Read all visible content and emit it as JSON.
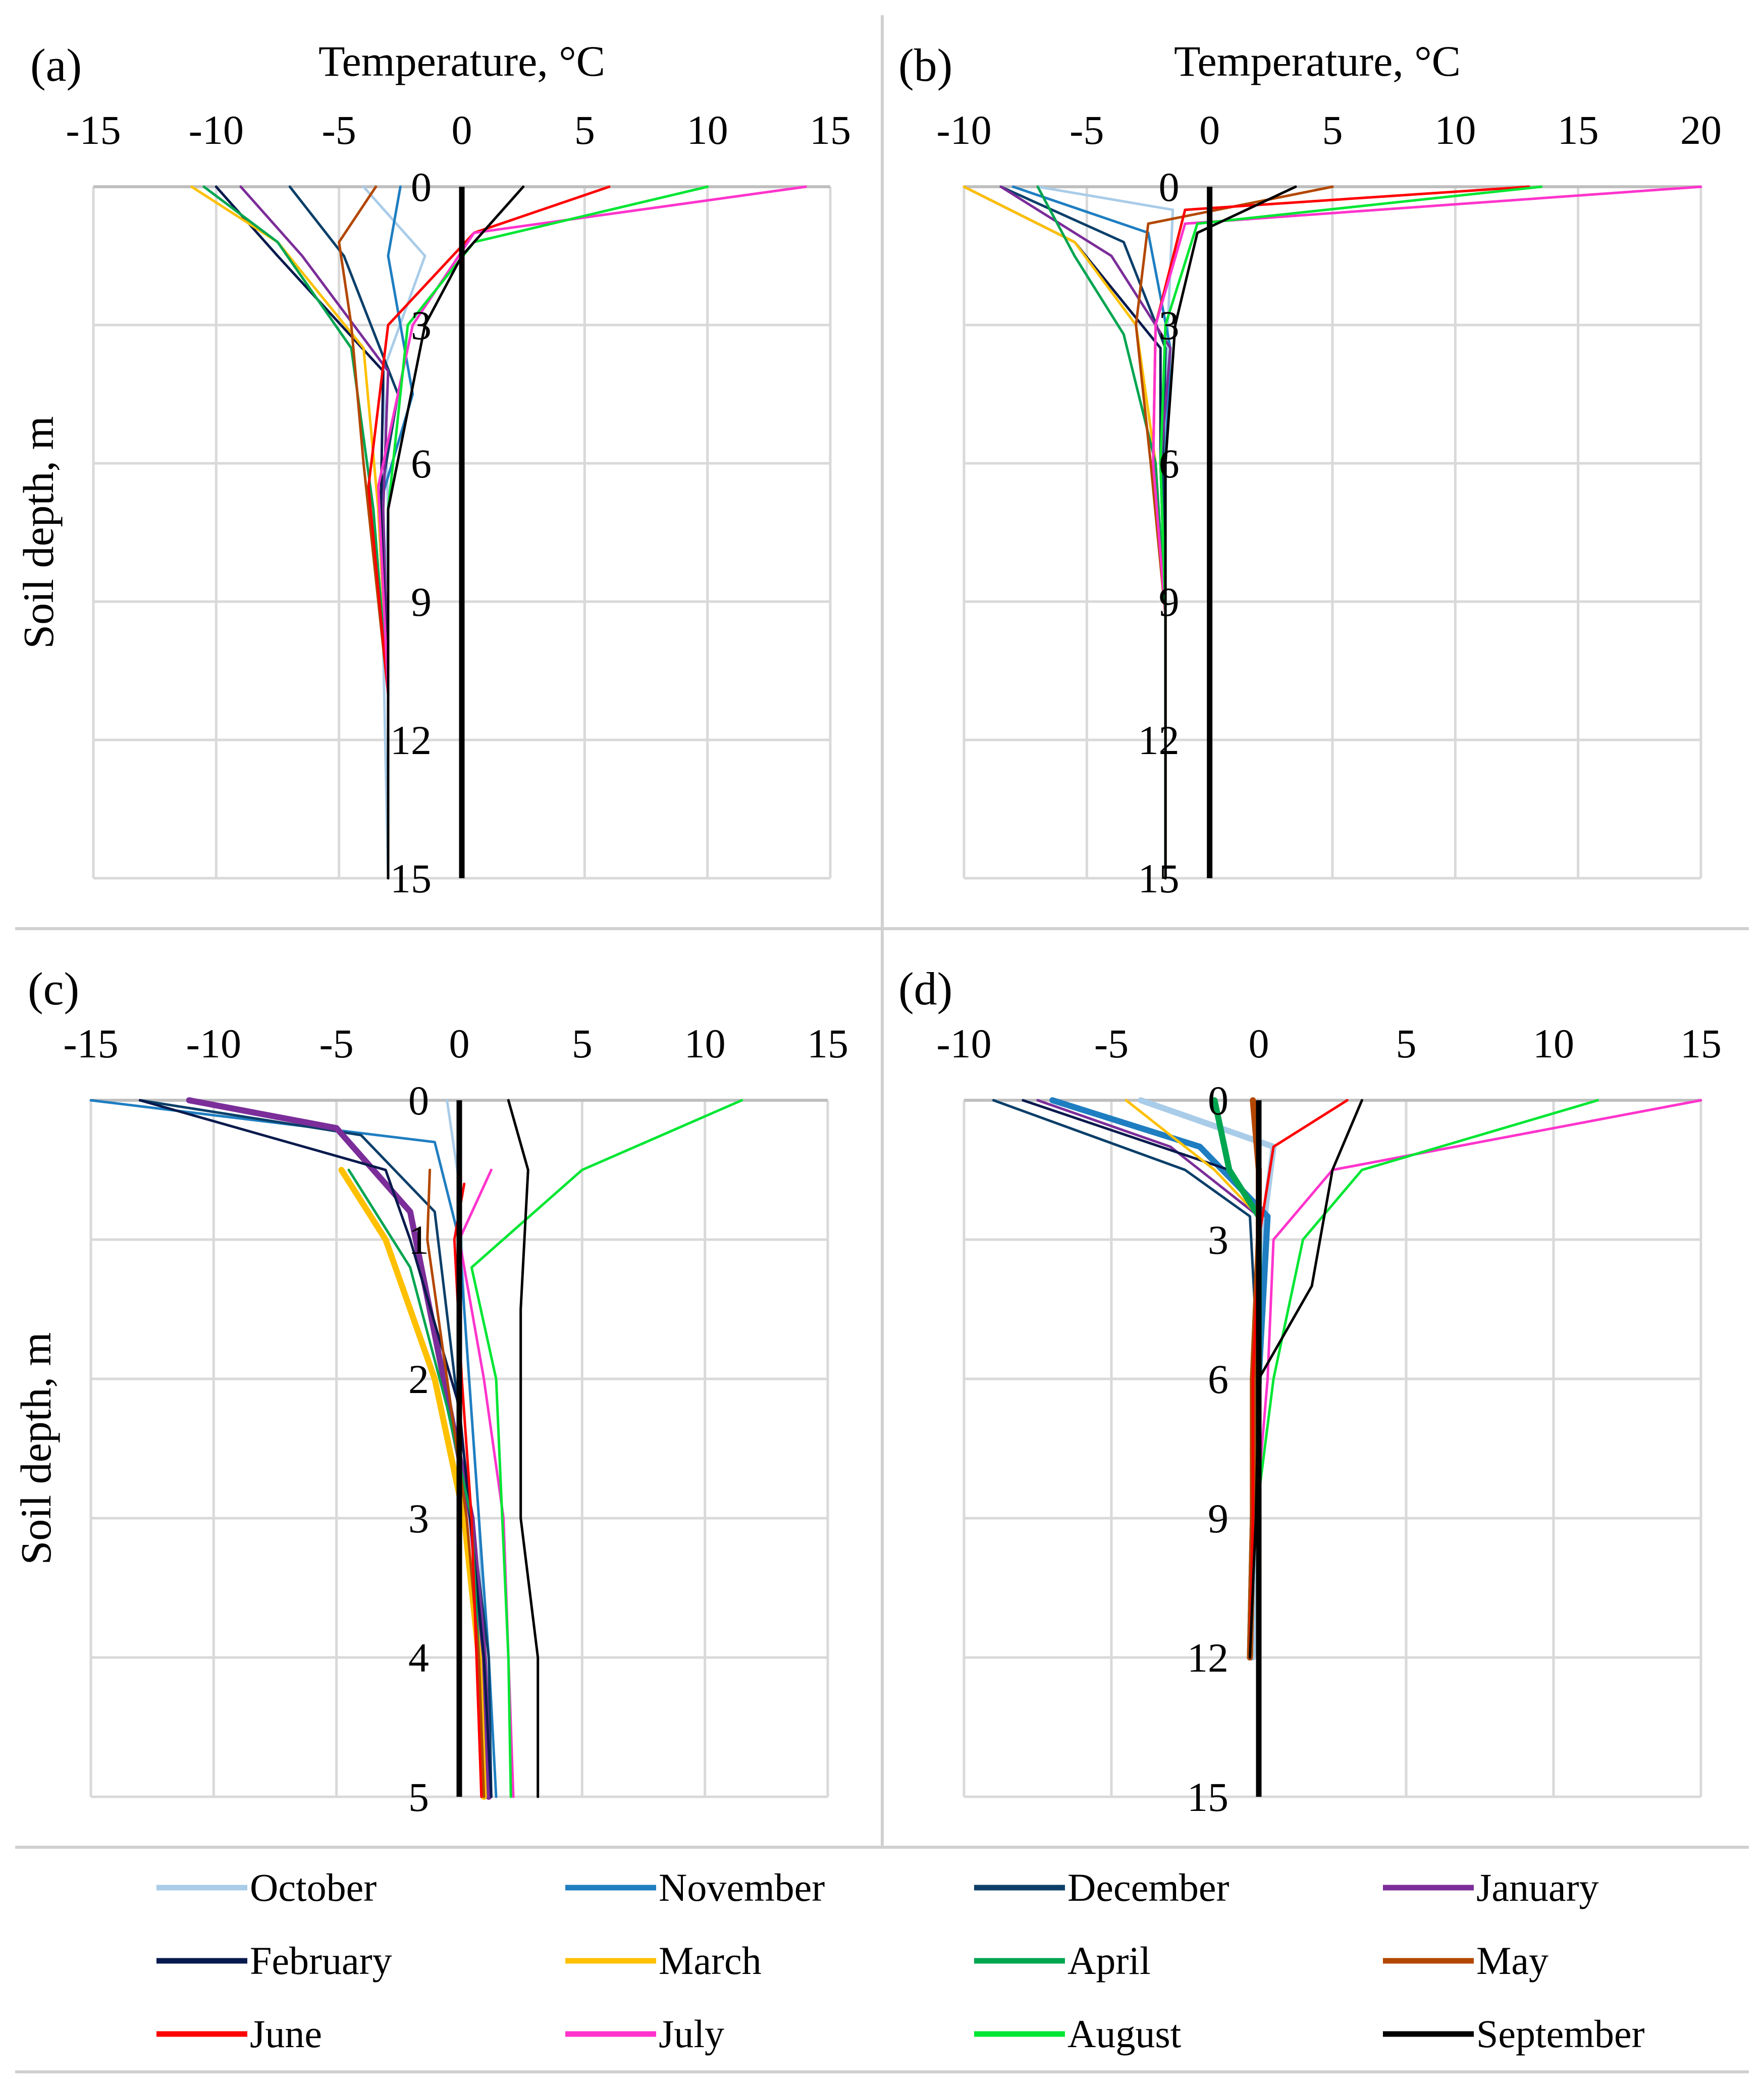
{
  "colors": {
    "October": "#a9cce8",
    "November": "#1f7ec1",
    "December": "#0b3f69",
    "January": "#7b2d99",
    "February": "#081a4d",
    "March": "#ffc000",
    "April": "#00a550",
    "May": "#b34700",
    "June": "#ff0000",
    "July": "#ff33cc",
    "August": "#00e633",
    "September": "#000000",
    "zero_line": "#000000"
  },
  "legend": {
    "items": [
      "October",
      "November",
      "December",
      "January",
      "February",
      "March",
      "April",
      "May",
      "June",
      "July",
      "August",
      "September"
    ]
  },
  "chart_data": [
    {
      "id": "a",
      "type": "line",
      "panel_label": "(a)",
      "xlabel": "Temperature, °C",
      "ylabel": "Soil depth, m",
      "xlim": [
        -15,
        15
      ],
      "ylim": [
        0,
        15
      ],
      "xticks": [
        -15,
        -10,
        -5,
        0,
        5,
        10,
        15
      ],
      "yticks": [
        0,
        3,
        6,
        9,
        12,
        15
      ],
      "zero_line": true,
      "series": [
        {
          "name": "October",
          "x": [
            -4,
            -1.5,
            -3.2,
            -3,
            -3.2,
            -3
          ],
          "y": [
            0,
            1.5,
            4,
            7,
            10,
            15
          ]
        },
        {
          "name": "November",
          "x": [
            -2.5,
            -3,
            -2,
            -3.4,
            -3,
            -3
          ],
          "y": [
            0,
            1.5,
            4.5,
            7,
            11,
            15
          ]
        },
        {
          "name": "December",
          "x": [
            -7,
            -4.8,
            -2.6,
            -3.4,
            -3,
            -3
          ],
          "y": [
            0,
            1.5,
            4.5,
            7,
            11,
            15
          ]
        },
        {
          "name": "January",
          "x": [
            -9,
            -6.5,
            -3,
            -3.2,
            -3,
            -3
          ],
          "y": [
            0,
            1.5,
            4,
            7,
            11,
            15
          ]
        },
        {
          "name": "February",
          "x": [
            -10,
            -7.5,
            -3.2,
            -3.3,
            -3,
            -3
          ],
          "y": [
            0,
            1.5,
            4,
            7,
            11,
            15
          ]
        },
        {
          "name": "March",
          "x": [
            -11,
            -7.5,
            -4,
            -3.4,
            -3,
            -3
          ],
          "y": [
            0,
            1.2,
            3.5,
            7,
            11,
            15
          ]
        },
        {
          "name": "April",
          "x": [
            -10.5,
            -7.5,
            -4.5,
            -3.6,
            -3,
            -3
          ],
          "y": [
            0,
            1.2,
            3.5,
            7,
            11,
            15
          ]
        },
        {
          "name": "May",
          "x": [
            -3.5,
            -5,
            -4.5,
            -4,
            -3,
            -3
          ],
          "y": [
            0,
            1.2,
            3,
            6,
            11,
            15
          ]
        },
        {
          "name": "June",
          "x": [
            6,
            0.5,
            -3,
            -3.8,
            -3,
            -3
          ],
          "y": [
            0,
            1,
            3,
            6.5,
            11,
            15
          ]
        },
        {
          "name": "July",
          "x": [
            14,
            0.5,
            -2,
            -3.4,
            -3,
            -3
          ],
          "y": [
            0,
            1,
            3,
            6.5,
            11,
            15
          ]
        },
        {
          "name": "August",
          "x": [
            10,
            0.5,
            -2.2,
            -3,
            -3,
            -3
          ],
          "y": [
            0,
            1.2,
            3,
            7,
            11,
            15
          ]
        },
        {
          "name": "September",
          "x": [
            2.5,
            0,
            -1.5,
            -3,
            -3,
            -3
          ],
          "y": [
            0,
            1.5,
            3,
            7,
            11,
            15
          ]
        }
      ]
    },
    {
      "id": "b",
      "type": "line",
      "panel_label": "(b)",
      "xlabel": "Temperature, °C",
      "ylabel": "",
      "xlim": [
        -10,
        20
      ],
      "ylim": [
        0,
        15
      ],
      "xticks": [
        -10,
        -5,
        0,
        5,
        10,
        15,
        20
      ],
      "yticks": [
        0,
        3,
        6,
        9,
        12,
        15
      ],
      "zero_line": true,
      "series": [
        {
          "name": "October",
          "x": [
            -7,
            -1.5,
            -1.7,
            -1.8,
            -1.8,
            -1.8
          ],
          "y": [
            0,
            0.5,
            3,
            6,
            9.3,
            15
          ]
        },
        {
          "name": "November",
          "x": [
            -8,
            -2.5,
            -1.6,
            -1.8,
            -1.8,
            -1.8
          ],
          "y": [
            0,
            1,
            3.5,
            6,
            9.3,
            15
          ]
        },
        {
          "name": "December",
          "x": [
            -8.5,
            -3.5,
            -1.8,
            -1.9,
            -1.8,
            -1.8
          ],
          "y": [
            0,
            1.2,
            3.5,
            6,
            9.3,
            15
          ]
        },
        {
          "name": "January",
          "x": [
            -8.5,
            -4,
            -1.6,
            -2,
            -1.8,
            -1.8
          ],
          "y": [
            0,
            1.5,
            3.5,
            6,
            9.3,
            15
          ]
        },
        {
          "name": "February",
          "x": [
            -10,
            -5.5,
            -2,
            -2,
            -1.8,
            -1.8
          ],
          "y": [
            0,
            1.2,
            3.5,
            6,
            9.3,
            15
          ]
        },
        {
          "name": "March",
          "x": [
            -10,
            -5.5,
            -3,
            -2.2,
            -1.8,
            -1.8
          ],
          "y": [
            0,
            1.2,
            3,
            6,
            9.3,
            15
          ]
        },
        {
          "name": "April",
          "x": [
            -7,
            -5.5,
            -3.5,
            -2.2,
            -1.8,
            -1.8
          ],
          "y": [
            0,
            1.5,
            3.2,
            6,
            9.3,
            15
          ]
        },
        {
          "name": "May",
          "x": [
            5,
            -2.5,
            -3,
            -2.4,
            -1.8,
            -1.8
          ],
          "y": [
            0,
            0.8,
            3,
            6,
            9.3,
            15
          ]
        },
        {
          "name": "June",
          "x": [
            13,
            -1,
            -2.2,
            -2.3,
            -1.8,
            -1.8
          ],
          "y": [
            0,
            0.5,
            3,
            6,
            9.3,
            15
          ]
        },
        {
          "name": "July",
          "x": [
            20,
            -1,
            -2.2,
            -2.3,
            -1.8,
            -1.8
          ],
          "y": [
            0,
            0.8,
            3,
            6,
            9.3,
            15
          ]
        },
        {
          "name": "August",
          "x": [
            13.5,
            -0.5,
            -1.8,
            -2,
            -1.8,
            -1.8
          ],
          "y": [
            0,
            0.8,
            3,
            6,
            9.3,
            15
          ]
        },
        {
          "name": "September",
          "x": [
            3.5,
            -0.5,
            -1.4,
            -1.8,
            -1.8,
            -1.8
          ],
          "y": [
            0,
            1,
            3,
            6,
            9.3,
            15
          ]
        }
      ]
    },
    {
      "id": "c",
      "type": "line",
      "panel_label": "(c)",
      "xlabel": "",
      "ylabel": "Soil depth, m",
      "xlim": [
        -15,
        15
      ],
      "ylim": [
        0,
        5
      ],
      "xticks": [
        -15,
        -10,
        -5,
        0,
        5,
        10,
        15
      ],
      "yticks": [
        0,
        1,
        2,
        3,
        4,
        5
      ],
      "zero_line": true,
      "series": [
        {
          "name": "October",
          "x": [
            -0.5,
            0,
            0.2,
            0.8,
            1,
            1.2
          ],
          "y": [
            0,
            0.6,
            1.5,
            3,
            4,
            5
          ]
        },
        {
          "name": "November",
          "x": [
            -15,
            -1,
            0,
            0.8,
            1.2,
            1.5
          ],
          "y": [
            0,
            0.3,
            1,
            3,
            4,
            5
          ]
        },
        {
          "name": "December",
          "x": [
            -13,
            -4,
            -1,
            0.5,
            1.2,
            1.3
          ],
          "y": [
            0,
            0.25,
            0.8,
            3,
            4,
            5
          ]
        },
        {
          "name": "January",
          "x": [
            -11,
            -5,
            -2,
            0.5,
            1,
            1.2
          ],
          "y": [
            0,
            0.2,
            0.8,
            3,
            4,
            5
          ]
        },
        {
          "name": "February",
          "x": [
            -13,
            -3,
            -2,
            0,
            1,
            1.3
          ],
          "y": [
            0,
            0.5,
            1,
            2.2,
            4,
            5
          ]
        },
        {
          "name": "March",
          "x": [
            -4.8,
            -3,
            -1,
            0.2,
            0.8,
            1
          ],
          "y": [
            0.5,
            1,
            2,
            3,
            4,
            5
          ]
        },
        {
          "name": "April",
          "x": [
            -4.5,
            -2,
            -0.5,
            0.5,
            0.8,
            1
          ],
          "y": [
            0.5,
            1.2,
            2.2,
            3,
            4,
            5
          ]
        },
        {
          "name": "May",
          "x": [
            -1.2,
            -1.3,
            -0.5,
            0.3,
            0.8,
            1
          ],
          "y": [
            0.5,
            1,
            2,
            3,
            4,
            5
          ]
        },
        {
          "name": "June",
          "x": [
            0.2,
            -0.2,
            0.1,
            0.5,
            0.7,
            0.9
          ],
          "y": [
            0.6,
            1,
            2,
            3,
            4,
            5
          ]
        },
        {
          "name": "July",
          "x": [
            1.3,
            0,
            1,
            1.8,
            2,
            2.2
          ],
          "y": [
            0.5,
            1,
            2,
            3,
            4,
            5
          ]
        },
        {
          "name": "August",
          "x": [
            11.5,
            5,
            0.5,
            1.5,
            2,
            2.1
          ],
          "y": [
            0,
            0.5,
            1.2,
            2,
            4,
            5
          ]
        },
        {
          "name": "September",
          "x": [
            2,
            2.8,
            2.5,
            2.5,
            3.2,
            3.2
          ],
          "y": [
            0,
            0.5,
            1.5,
            3,
            4,
            5
          ]
        }
      ]
    },
    {
      "id": "d",
      "type": "line",
      "panel_label": "(d)",
      "xlabel": "",
      "ylabel": "",
      "xlim": [
        -10,
        15
      ],
      "ylim": [
        0,
        15
      ],
      "xticks": [
        -10,
        -5,
        0,
        5,
        10,
        15
      ],
      "yticks": [
        0,
        3,
        6,
        9,
        12,
        15
      ],
      "zero_line": true,
      "series": [
        {
          "name": "October",
          "x": [
            -4,
            0.5,
            0.2,
            0,
            -0.1,
            -0.2
          ],
          "y": [
            0,
            1,
            2.5,
            6,
            9,
            12
          ]
        },
        {
          "name": "November",
          "x": [
            -7,
            -2,
            0.3,
            0,
            -0.2,
            -0.3
          ],
          "y": [
            0,
            1,
            2.5,
            6,
            9,
            12
          ]
        },
        {
          "name": "December",
          "x": [
            -9,
            -2.5,
            -0.3,
            0,
            -0.2,
            -0.3
          ],
          "y": [
            0,
            1.5,
            2.5,
            6,
            9,
            12
          ]
        },
        {
          "name": "January",
          "x": [
            -7.5,
            -3,
            0,
            0,
            -0.2,
            -0.3
          ],
          "y": [
            0,
            1,
            2.5,
            6,
            9,
            12
          ]
        },
        {
          "name": "February",
          "x": [
            -8,
            -1,
            0,
            0,
            -0.2,
            -0.3
          ],
          "y": [
            0,
            1.5,
            2.5,
            6,
            9,
            12
          ]
        },
        {
          "name": "March",
          "x": [
            -4.5,
            -1.5,
            0,
            0,
            -0.2,
            -0.3
          ],
          "y": [
            0,
            1.5,
            2.5,
            6,
            9,
            12
          ]
        },
        {
          "name": "April",
          "x": [
            -1.5,
            -1,
            0,
            0,
            -0.2,
            -0.3
          ],
          "y": [
            0,
            1.5,
            2.5,
            6,
            9,
            12
          ]
        },
        {
          "name": "May",
          "x": [
            -0.2,
            0,
            0,
            -0.2,
            -0.2,
            -0.3
          ],
          "y": [
            0,
            1.5,
            3,
            6,
            9,
            12
          ]
        },
        {
          "name": "June",
          "x": [
            3,
            0.5,
            0,
            -0.2,
            -0.2,
            -0.3
          ],
          "y": [
            0,
            1,
            3,
            6,
            9,
            12
          ]
        },
        {
          "name": "July",
          "x": [
            15,
            2.5,
            0.5,
            0.3,
            -0.1,
            -0.3
          ],
          "y": [
            0,
            1.5,
            3,
            6,
            9,
            12
          ]
        },
        {
          "name": "August",
          "x": [
            11.5,
            3.5,
            1.5,
            0.5,
            -0.1,
            -0.3
          ],
          "y": [
            0,
            1.5,
            3,
            6,
            9,
            12
          ]
        },
        {
          "name": "September",
          "x": [
            3.5,
            2.5,
            1.8,
            0,
            -0.1,
            -0.3
          ],
          "y": [
            0,
            1.5,
            4,
            6,
            9,
            12
          ]
        }
      ]
    }
  ]
}
